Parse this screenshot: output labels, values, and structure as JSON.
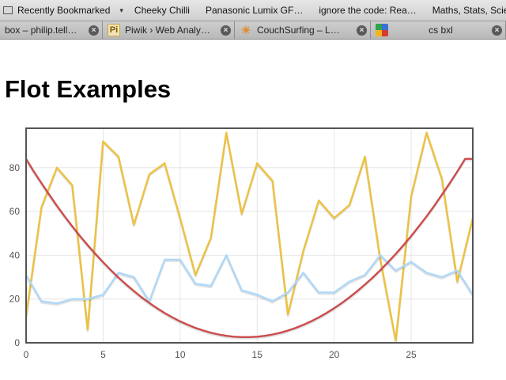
{
  "bookmarks_bar": {
    "folder": "Recently Bookmarked",
    "items": [
      "Cheeky Chilli",
      "Panasonic Lumix GF…",
      "ignore the code: Rea…",
      "Maths, Stats, Science"
    ]
  },
  "tabs": [
    {
      "label": "box – philip.tell…",
      "icon": "tab-icon",
      "closable": true
    },
    {
      "label": "Piwik › Web Analy…",
      "icon": "piwik-icon",
      "favicon_text": "Pi",
      "closable": true
    },
    {
      "label": "CouchSurfing – L…",
      "icon": "couchsurfing-icon",
      "closable": true
    },
    {
      "label": "cs bxl",
      "icon": "google-icon",
      "closable": true
    }
  ],
  "page": {
    "title": "Flot Examples"
  },
  "chart_data": {
    "type": "line",
    "xlim": [
      0,
      29
    ],
    "ylim": [
      0,
      98
    ],
    "x_ticks": [
      0,
      5,
      10,
      15,
      20,
      25
    ],
    "y_ticks": [
      0,
      20,
      40,
      60,
      80
    ],
    "grid": true,
    "legend": "none",
    "series": [
      {
        "color": "#edc240",
        "x": [
          0,
          1,
          2,
          3,
          4,
          5,
          6,
          7,
          8,
          9,
          10,
          11,
          12,
          13,
          14,
          15,
          16,
          17,
          18,
          19,
          20,
          21,
          22,
          23,
          24,
          25,
          26,
          27,
          28,
          29
        ],
        "values": [
          12,
          62,
          80,
          72,
          6,
          92,
          85,
          54,
          77,
          82,
          57,
          31,
          48,
          96,
          59,
          82,
          74,
          13,
          42,
          65,
          57,
          63,
          85,
          38,
          1,
          67,
          96,
          75,
          28,
          57
        ]
      },
      {
        "color": "#afd8f8",
        "x": [
          0,
          1,
          2,
          3,
          4,
          5,
          6,
          7,
          8,
          9,
          10,
          11,
          12,
          13,
          14,
          15,
          16,
          17,
          18,
          19,
          20,
          21,
          22,
          23,
          24,
          25,
          26,
          27,
          28,
          29
        ],
        "values": [
          31,
          19,
          18,
          20,
          20,
          22,
          32,
          30,
          19,
          38,
          38,
          27,
          26,
          40,
          24,
          22,
          19,
          23,
          32,
          23,
          23,
          28,
          31,
          40,
          33,
          37,
          32,
          30,
          33,
          22
        ]
      },
      {
        "color": "#cb4b4b",
        "x": [
          0,
          0.5,
          1,
          1.5,
          2,
          2.5,
          3,
          3.5,
          4,
          4.5,
          5,
          5.5,
          6,
          6.5,
          7,
          7.5,
          8,
          8.5,
          9,
          9.5,
          10,
          10.5,
          11,
          11.5,
          12,
          12.5,
          13,
          13.5,
          14,
          14.5,
          15,
          15.5,
          16,
          16.5,
          17,
          17.5,
          18,
          18.5,
          19,
          19.5,
          20,
          20.5,
          21,
          21.5,
          22,
          22.5,
          23,
          23.5,
          24,
          24.5,
          25,
          25.5,
          26,
          26.5,
          27,
          27.5,
          28,
          28.5,
          29
        ],
        "values": [
          84,
          78.3,
          72.9,
          67.7,
          62.6,
          57.8,
          53.2,
          48.8,
          44.6,
          40.6,
          36.8,
          33.2,
          29.8,
          26.6,
          23.6,
          20.8,
          18.2,
          15.8,
          13.6,
          11.6,
          9.8,
          8.2,
          6.8,
          5.6,
          4.6,
          3.8,
          3.2,
          2.8,
          2.6,
          2.6,
          2.8,
          3.2,
          3.8,
          4.6,
          5.6,
          6.8,
          8.2,
          9.8,
          11.6,
          13.6,
          15.8,
          18.2,
          20.8,
          23.6,
          26.6,
          29.8,
          33.2,
          36.8,
          40.6,
          44.6,
          48.8,
          53.2,
          57.8,
          62.6,
          67.7,
          72.9,
          78.3,
          84,
          84
        ]
      }
    ]
  }
}
